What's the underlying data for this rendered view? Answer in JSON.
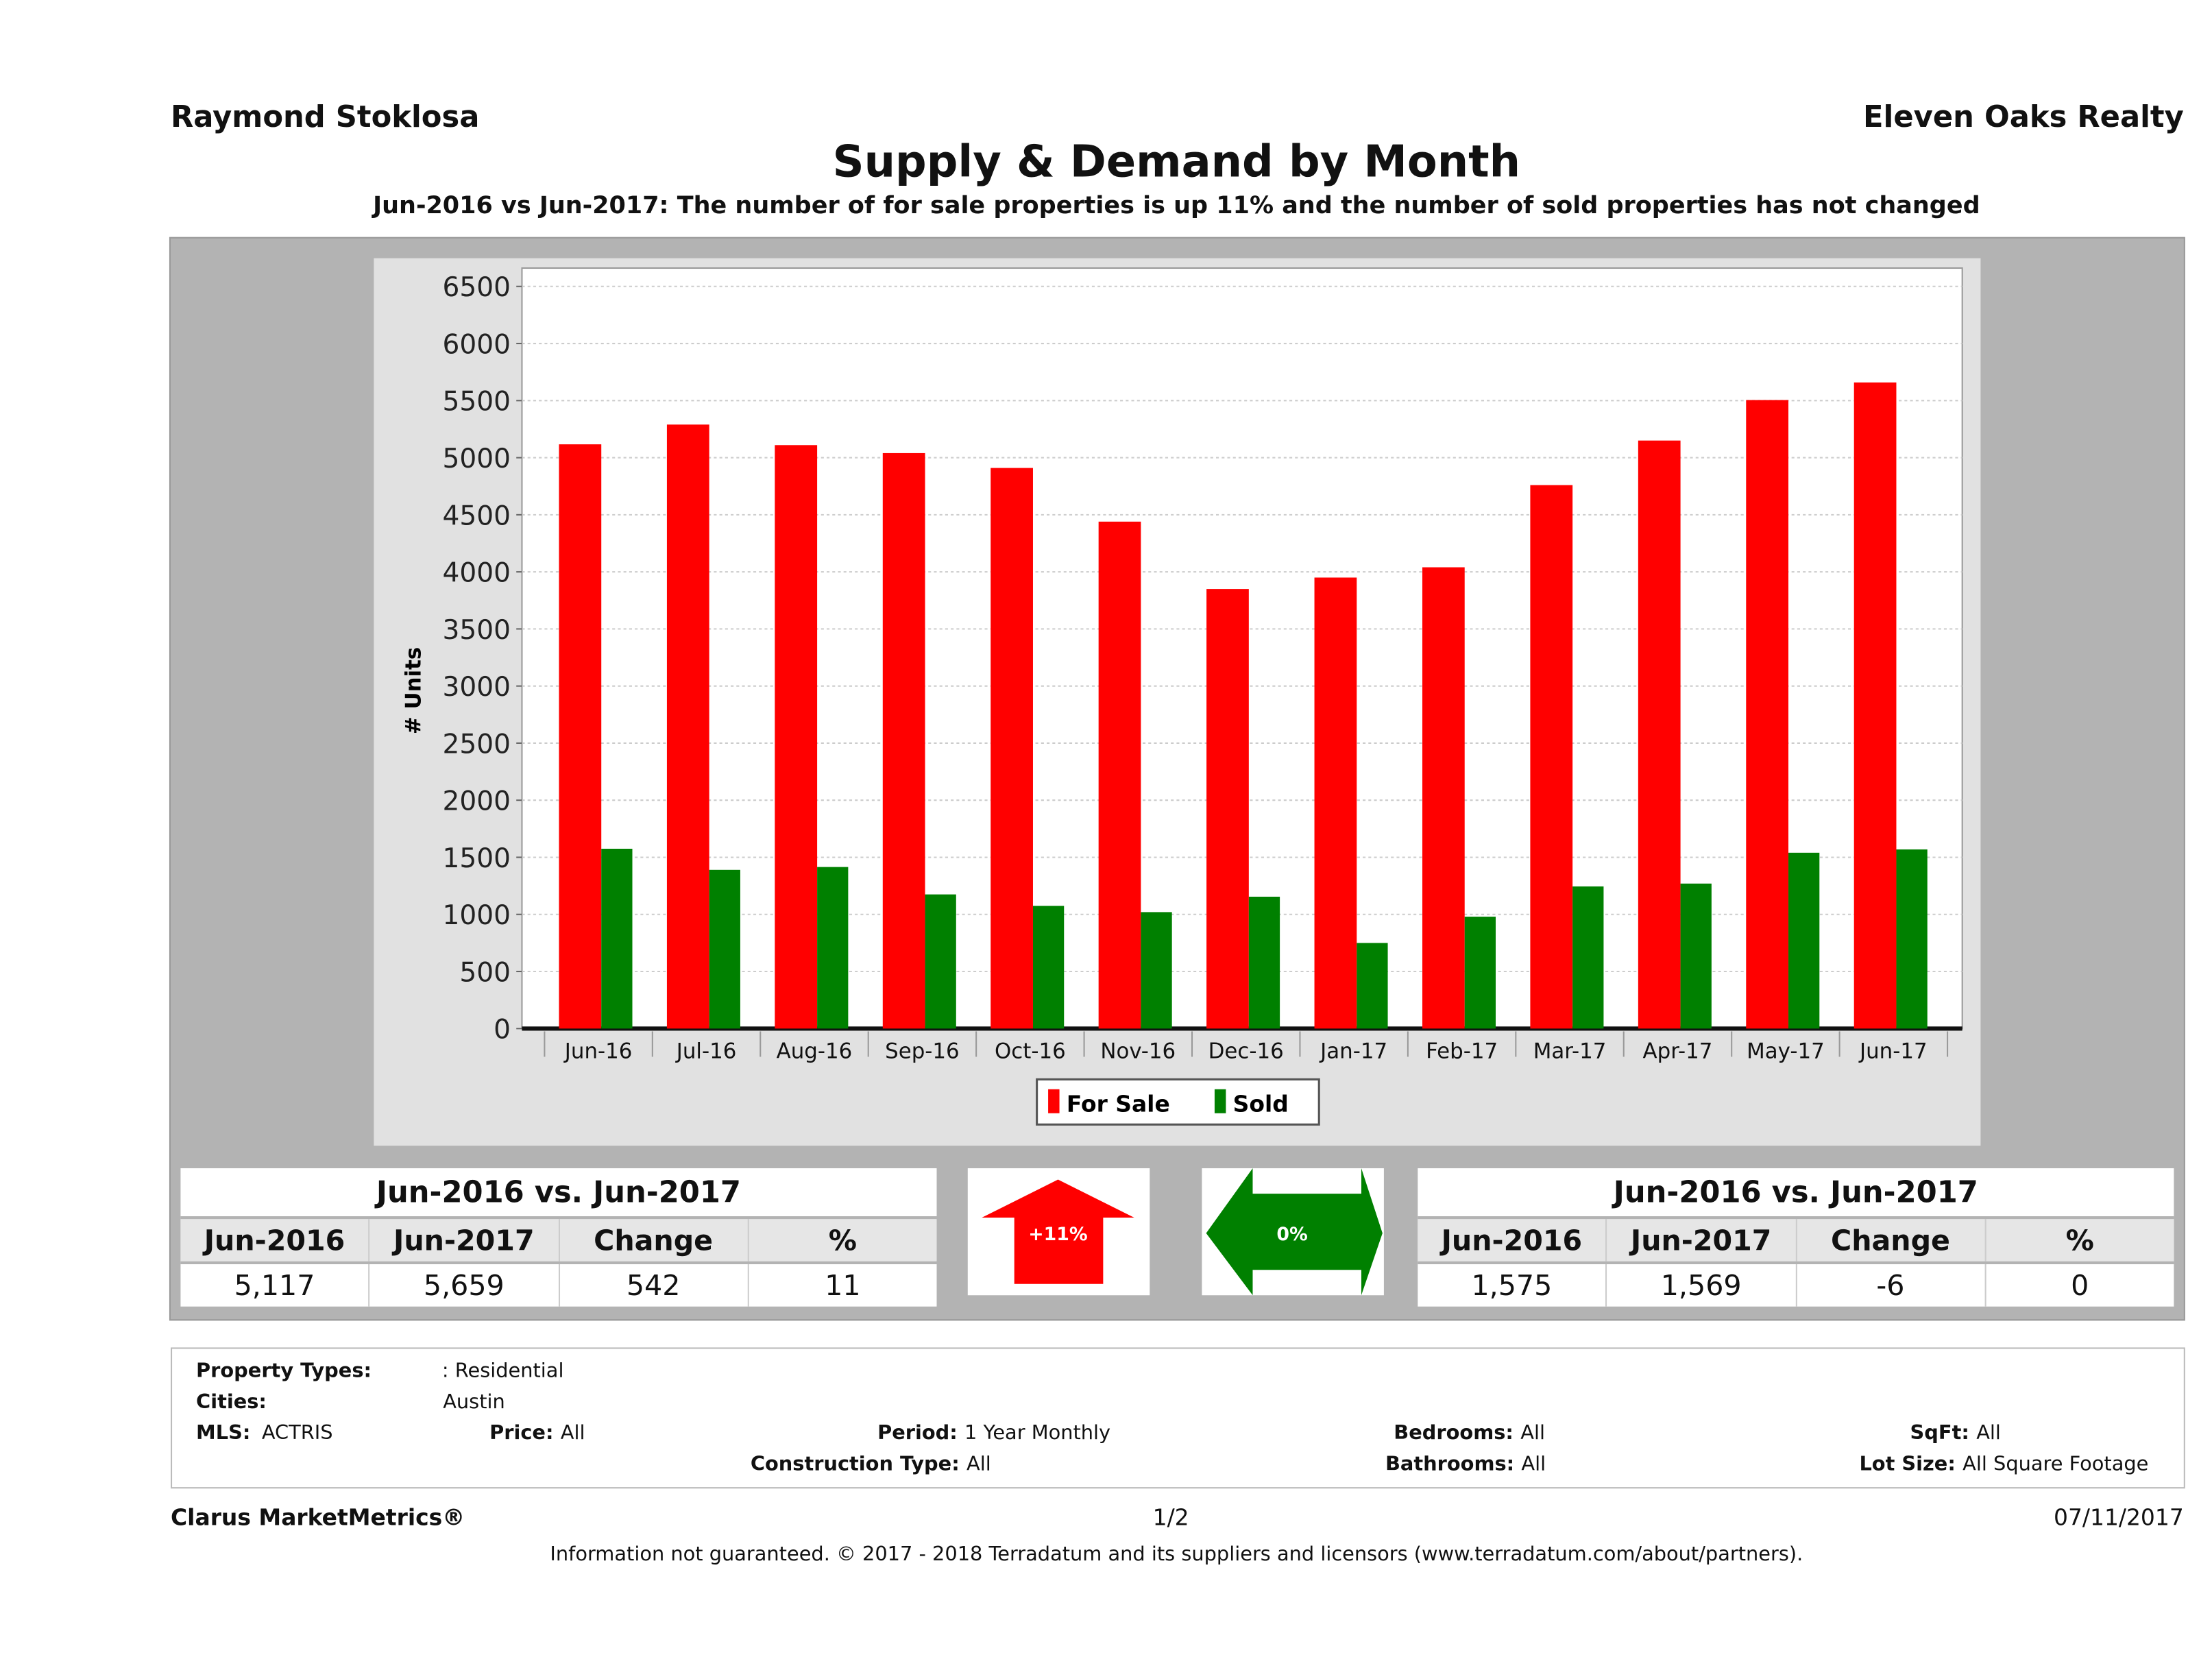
{
  "header": {
    "agent": "Raymond Stoklosa",
    "brokerage": "Eleven Oaks Realty",
    "title": "Supply & Demand by Month",
    "subtitle": "Jun-2016 vs Jun-2017: The number of for sale properties is up 11% and the number of sold properties has not changed"
  },
  "chart_data": {
    "type": "bar",
    "title": "",
    "xlabel": "",
    "ylabel": "# Units",
    "ylim": [
      0,
      6500
    ],
    "yticks": [
      0,
      500,
      1000,
      1500,
      2000,
      2500,
      3000,
      3500,
      4000,
      4500,
      5000,
      5500,
      6000,
      6500
    ],
    "grid": true,
    "legend": "bottom-center",
    "categories": [
      "Jun-16",
      "Jul-16",
      "Aug-16",
      "Sep-16",
      "Oct-16",
      "Nov-16",
      "Dec-16",
      "Jan-17",
      "Feb-17",
      "Mar-17",
      "Apr-17",
      "May-17",
      "Jun-17"
    ],
    "series": [
      {
        "name": "For Sale",
        "color": "#ff0000",
        "values": [
          5117,
          5290,
          5110,
          5040,
          4910,
          4440,
          3850,
          3950,
          4040,
          4760,
          5150,
          5505,
          5659
        ]
      },
      {
        "name": "Sold",
        "color": "#008000",
        "values": [
          1575,
          1390,
          1415,
          1175,
          1075,
          1020,
          1155,
          750,
          980,
          1245,
          1270,
          1540,
          1569
        ]
      }
    ]
  },
  "for_sale_table": {
    "title": "Jun-2016 vs. Jun-2017",
    "headers": [
      "Jun-2016",
      "Jun-2017",
      "Change",
      "%"
    ],
    "values": [
      "5,117",
      "5,659",
      "542",
      "11"
    ]
  },
  "for_sale_indicator": {
    "label": "+11%",
    "direction": "up",
    "color": "#ff0000"
  },
  "sold_indicator": {
    "label": "0%",
    "direction": "flat",
    "color": "#008000"
  },
  "sold_table": {
    "title": "Jun-2016 vs. Jun-2017",
    "headers": [
      "Jun-2016",
      "Jun-2017",
      "Change",
      "%"
    ],
    "values": [
      "1,575",
      "1,569",
      "-6",
      "0"
    ]
  },
  "filters": {
    "property_types_label": "Property Types:",
    "property_types": ": Residential",
    "cities_label": "Cities:",
    "cities": "Austin",
    "mls_label": "MLS:",
    "mls": "ACTRIS",
    "price_label": "Price:",
    "price": "All",
    "period_label": "Period:",
    "period": "1 Year Monthly",
    "construction_label": "Construction Type:",
    "construction": "All",
    "bedrooms_label": "Bedrooms:",
    "bedrooms": "All",
    "bathrooms_label": "Bathrooms:",
    "bathrooms": "All",
    "sqft_label": "SqFt:",
    "sqft": "All",
    "lot_label": "Lot Size:",
    "lot": "All Square Footage"
  },
  "footer": {
    "product": "Clarus MarketMetrics®",
    "page": "1/2",
    "date": "07/11/2017",
    "disclaimer": "Information not guaranteed. © 2017 - 2018 Terradatum and its suppliers and licensors (www.terradatum.com/about/partners)."
  }
}
